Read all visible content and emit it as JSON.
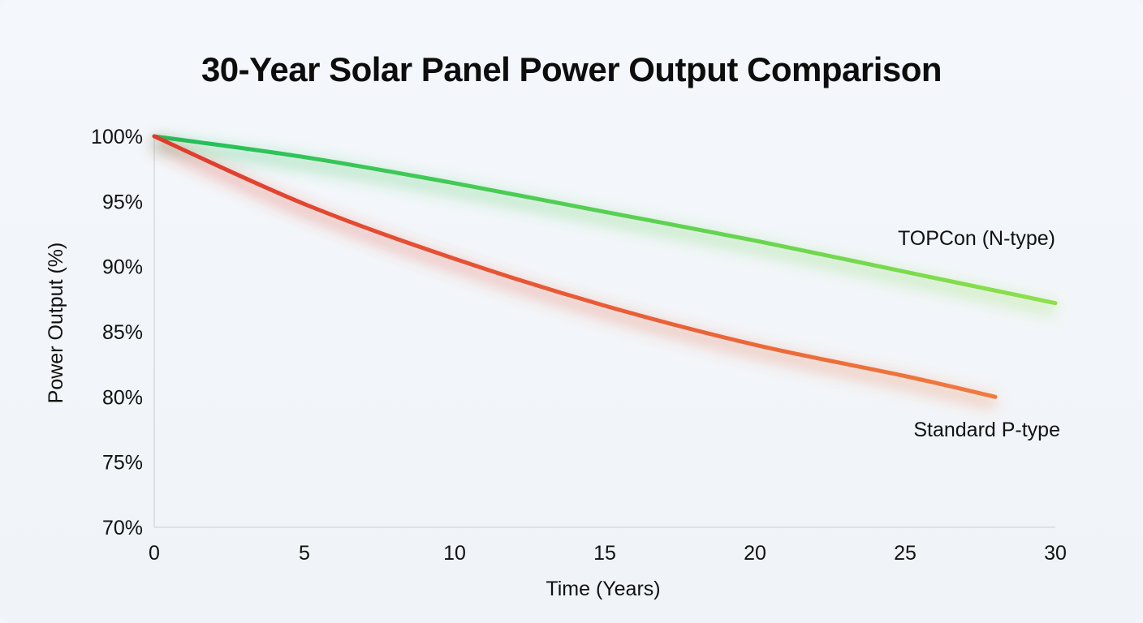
{
  "chart_data": {
    "type": "line",
    "title": "30-Year Solar Panel Power Output Comparison",
    "xlabel": "Time (Years)",
    "ylabel": "Power Output (%)",
    "xlim": [
      0,
      30
    ],
    "ylim": [
      70,
      100
    ],
    "x_ticks": [
      "0",
      "5",
      "10",
      "15",
      "20",
      "25",
      "30"
    ],
    "x_tick_values": [
      0,
      5,
      10,
      15,
      20,
      25,
      30
    ],
    "y_ticks": [
      "100%",
      "95%",
      "90%",
      "85%",
      "80%",
      "75%",
      "70%"
    ],
    "y_tick_values": [
      100,
      95,
      90,
      85,
      80,
      75,
      70
    ],
    "grid": false,
    "series": [
      {
        "name": "TOPCon (N-type)",
        "color_start": "#1fbf5a",
        "color_end": "#8ee04a",
        "x": [
          0,
          5,
          10,
          15,
          20,
          25,
          30
        ],
        "values": [
          100,
          98.4,
          96.4,
          94.2,
          92.0,
          89.6,
          87.2
        ]
      },
      {
        "name": "Standard P-type",
        "color_start": "#e03a2c",
        "color_end": "#f07a3e",
        "x": [
          0,
          5,
          10,
          15,
          20,
          25,
          28
        ],
        "values": [
          100,
          94.8,
          90.6,
          87.0,
          84.0,
          81.6,
          80.0
        ]
      }
    ]
  }
}
